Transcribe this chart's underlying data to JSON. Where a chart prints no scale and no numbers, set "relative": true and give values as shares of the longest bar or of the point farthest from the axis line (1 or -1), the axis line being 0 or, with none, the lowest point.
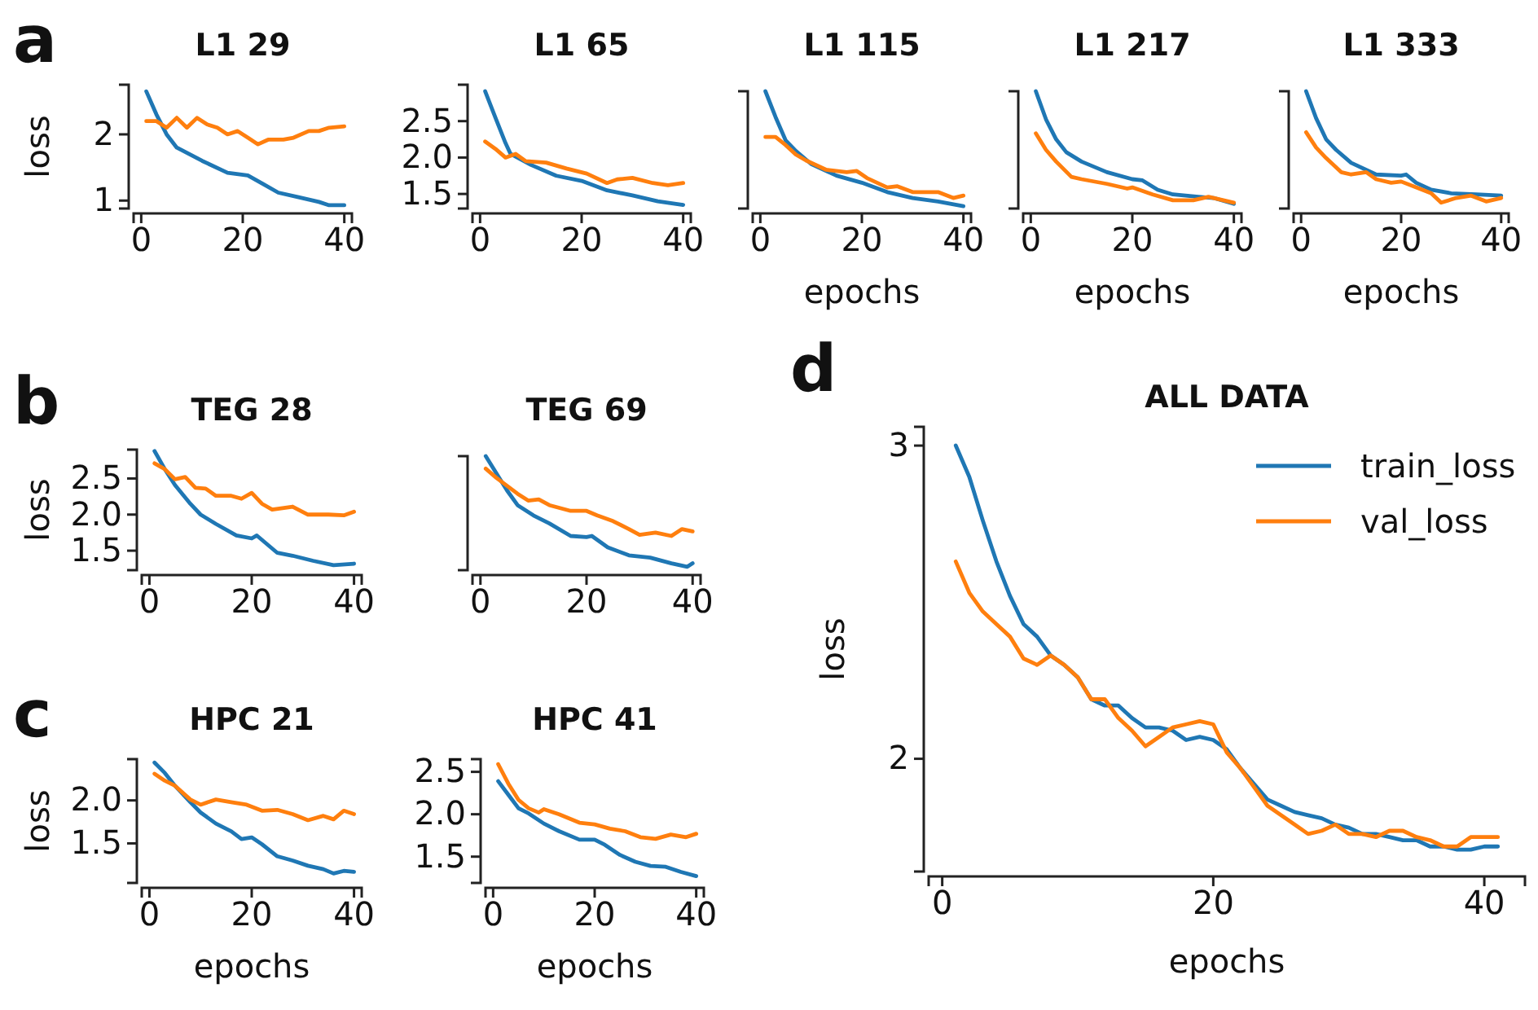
{
  "chart_data": [
    {
      "type": "line",
      "title": "L1 29",
      "ylabel": "loss",
      "annotations": [
        "a"
      ],
      "xlim": [
        -1.5,
        41.5
      ],
      "xticks": [
        0,
        20,
        40
      ],
      "ylim": [
        0.88,
        2.75
      ],
      "yticks": [
        1,
        2
      ],
      "series": [
        {
          "color": "#1f77b4",
          "x": [
            1,
            3,
            5,
            7,
            12,
            17,
            21,
            24,
            27,
            31,
            35,
            37,
            40
          ],
          "values": [
            2.65,
            2.3,
            2.0,
            1.8,
            1.6,
            1.42,
            1.38,
            1.25,
            1.12,
            1.05,
            0.98,
            0.93,
            0.93
          ]
        },
        {
          "color": "#ff7f0e",
          "x": [
            1,
            3,
            5,
            7,
            9,
            11,
            13,
            15,
            17,
            19,
            21,
            23,
            25,
            28,
            30,
            33,
            35,
            37,
            40
          ],
          "values": [
            2.2,
            2.2,
            2.1,
            2.25,
            2.1,
            2.25,
            2.15,
            2.1,
            2.0,
            2.05,
            1.95,
            1.85,
            1.92,
            1.92,
            1.95,
            2.05,
            2.05,
            2.1,
            2.12
          ]
        }
      ]
    },
    {
      "type": "line",
      "title": "L1 65",
      "xlim": [
        -1.5,
        41.5
      ],
      "xticks": [
        0,
        20,
        40
      ],
      "ylim": [
        1.3,
        3.0
      ],
      "yticks": [
        {
          "value": 1.5,
          "label": "1.5"
        },
        {
          "value": 2,
          "label": "2.0"
        },
        {
          "value": 2.5,
          "label": "2.5"
        }
      ],
      "series": [
        {
          "color": "#1f77b4",
          "x": [
            1,
            3,
            5,
            6,
            10,
            15,
            20,
            25,
            30,
            35,
            40
          ],
          "values": [
            2.91,
            2.55,
            2.2,
            2.05,
            1.9,
            1.75,
            1.68,
            1.55,
            1.48,
            1.4,
            1.35
          ]
        },
        {
          "color": "#ff7f0e",
          "x": [
            1,
            3,
            5,
            7,
            9,
            13,
            17,
            21,
            25,
            27,
            30,
            34,
            37,
            40
          ],
          "values": [
            2.22,
            2.12,
            2.0,
            2.05,
            1.95,
            1.93,
            1.85,
            1.78,
            1.65,
            1.7,
            1.72,
            1.65,
            1.62,
            1.65
          ]
        }
      ]
    },
    {
      "type": "line",
      "title": "L1 115",
      "xlabel": "epochs",
      "relative": true,
      "xlim": [
        -1.5,
        41.5
      ],
      "xticks": [
        0,
        20,
        40
      ],
      "series": [
        {
          "color": "#1f77b4",
          "x": [
            1,
            3,
            5,
            7,
            10,
            15,
            20,
            25,
            30,
            35,
            40
          ],
          "values": [
            1,
            0.78,
            0.58,
            0.49,
            0.38,
            0.28,
            0.22,
            0.14,
            0.09,
            0.06,
            0.02
          ]
        },
        {
          "color": "#ff7f0e",
          "x": [
            1,
            3,
            5,
            7,
            9,
            13,
            17,
            19,
            21,
            25,
            27,
            30,
            35,
            38,
            40
          ],
          "values": [
            0.61,
            0.61,
            0.54,
            0.46,
            0.41,
            0.33,
            0.31,
            0.32,
            0.26,
            0.18,
            0.19,
            0.14,
            0.14,
            0.09,
            0.11
          ]
        }
      ]
    },
    {
      "type": "line",
      "title": "L1 217",
      "xlabel": "epochs",
      "relative": true,
      "xlim": [
        -1.5,
        41.5
      ],
      "xticks": [
        0,
        20,
        40
      ],
      "series": [
        {
          "color": "#1f77b4",
          "x": [
            1,
            3,
            5,
            7,
            10,
            15,
            20,
            22,
            25,
            28,
            33,
            36,
            40
          ],
          "values": [
            1,
            0.76,
            0.59,
            0.48,
            0.4,
            0.31,
            0.25,
            0.24,
            0.16,
            0.12,
            0.1,
            0.09,
            0.04
          ]
        },
        {
          "color": "#ff7f0e",
          "x": [
            1,
            3,
            5,
            8,
            10,
            15,
            19,
            20,
            24,
            28,
            32,
            35,
            40
          ],
          "values": [
            0.64,
            0.5,
            0.4,
            0.27,
            0.25,
            0.21,
            0.17,
            0.18,
            0.12,
            0.07,
            0.07,
            0.1,
            0.05
          ]
        }
      ]
    },
    {
      "type": "line",
      "title": "L1 333",
      "xlabel": "epochs",
      "relative": true,
      "xlim": [
        -1.5,
        41.5
      ],
      "xticks": [
        0,
        20,
        40
      ],
      "series": [
        {
          "color": "#1f77b4",
          "x": [
            1,
            3,
            5,
            7,
            10,
            15,
            20,
            21,
            23,
            26,
            30,
            35,
            40
          ],
          "values": [
            1,
            0.77,
            0.59,
            0.5,
            0.39,
            0.29,
            0.28,
            0.29,
            0.22,
            0.16,
            0.13,
            0.12,
            0.11
          ]
        },
        {
          "color": "#ff7f0e",
          "x": [
            1,
            3,
            5,
            8,
            10,
            13,
            15,
            18,
            20,
            23,
            26,
            28,
            31,
            34,
            37,
            40
          ],
          "values": [
            0.65,
            0.52,
            0.43,
            0.31,
            0.29,
            0.31,
            0.25,
            0.22,
            0.23,
            0.18,
            0.13,
            0.05,
            0.09,
            0.11,
            0.06,
            0.09
          ]
        }
      ]
    },
    {
      "type": "line",
      "title": "TEG 28",
      "ylabel": "loss",
      "annotations": [
        "b"
      ],
      "xlim": [
        -1.5,
        41.5
      ],
      "xticks": [
        0,
        20,
        40
      ],
      "ylim": [
        1.23,
        2.9
      ],
      "yticks": [
        {
          "value": 1.5,
          "label": "1.5"
        },
        {
          "value": 2,
          "label": "2.0"
        },
        {
          "value": 2.5,
          "label": "2.5"
        }
      ],
      "series": [
        {
          "color": "#1f77b4",
          "x": [
            1,
            3,
            5,
            8,
            10,
            13,
            17,
            20,
            21,
            25,
            28,
            32,
            36,
            40
          ],
          "values": [
            2.88,
            2.63,
            2.41,
            2.15,
            2.0,
            1.87,
            1.71,
            1.67,
            1.71,
            1.47,
            1.43,
            1.36,
            1.3,
            1.32
          ]
        },
        {
          "color": "#ff7f0e",
          "x": [
            1,
            3,
            5,
            7,
            9,
            11,
            13,
            16,
            18,
            20,
            22,
            24,
            28,
            31,
            35,
            38,
            40
          ],
          "values": [
            2.71,
            2.63,
            2.49,
            2.52,
            2.37,
            2.36,
            2.26,
            2.26,
            2.22,
            2.3,
            2.15,
            2.07,
            2.11,
            2.0,
            2.0,
            1.99,
            2.04
          ]
        }
      ]
    },
    {
      "type": "line",
      "title": "TEG 69",
      "relative": true,
      "xlim": [
        -1.5,
        41.5
      ],
      "xticks": [
        0,
        20,
        40
      ],
      "series": [
        {
          "color": "#1f77b4",
          "x": [
            1,
            3,
            5,
            7,
            10,
            13,
            17,
            20,
            21,
            24,
            28,
            32,
            36,
            39,
            40
          ],
          "values": [
            1,
            0.85,
            0.7,
            0.57,
            0.48,
            0.41,
            0.3,
            0.29,
            0.3,
            0.2,
            0.13,
            0.11,
            0.06,
            0.03,
            0.06
          ]
        },
        {
          "color": "#ff7f0e",
          "x": [
            1,
            3,
            5,
            7,
            9,
            11,
            13,
            17,
            20,
            22,
            25,
            28,
            30,
            33,
            36,
            38,
            40
          ],
          "values": [
            0.89,
            0.81,
            0.74,
            0.67,
            0.61,
            0.62,
            0.57,
            0.52,
            0.52,
            0.48,
            0.43,
            0.36,
            0.31,
            0.33,
            0.3,
            0.36,
            0.34
          ]
        }
      ]
    },
    {
      "type": "line",
      "title": "HPC 21",
      "xlabel": "epochs",
      "ylabel": "loss",
      "annotations": [
        "c"
      ],
      "xlim": [
        -1.5,
        41.5
      ],
      "xticks": [
        0,
        20,
        40
      ],
      "ylim": [
        1.04,
        2.48
      ],
      "yticks": [
        {
          "value": 1.5,
          "label": "1.5"
        },
        {
          "value": 2,
          "label": "2.0"
        }
      ],
      "series": [
        {
          "color": "#1f77b4",
          "x": [
            1,
            3,
            5,
            8,
            10,
            13,
            16,
            18,
            20,
            22,
            25,
            28,
            31,
            34,
            36,
            38,
            40
          ],
          "values": [
            2.44,
            2.32,
            2.17,
            1.98,
            1.86,
            1.73,
            1.64,
            1.55,
            1.57,
            1.49,
            1.35,
            1.3,
            1.24,
            1.2,
            1.15,
            1.18,
            1.17
          ]
        },
        {
          "color": "#ff7f0e",
          "x": [
            1,
            3,
            5,
            8,
            10,
            13,
            16,
            19,
            22,
            25,
            28,
            31,
            34,
            36,
            38,
            40
          ],
          "values": [
            2.31,
            2.23,
            2.17,
            2.01,
            1.95,
            2.01,
            1.98,
            1.95,
            1.88,
            1.89,
            1.84,
            1.77,
            1.82,
            1.78,
            1.88,
            1.84
          ]
        }
      ]
    },
    {
      "type": "line",
      "title": "HPC 41",
      "xlabel": "epochs",
      "xlim": [
        -1.5,
        41.5
      ],
      "xticks": [
        0,
        20,
        40
      ],
      "ylim": [
        1.19,
        2.65
      ],
      "yticks": [
        {
          "value": 1.5,
          "label": "1.5"
        },
        {
          "value": 2,
          "label": "2.0"
        },
        {
          "value": 2.5,
          "label": "2.5"
        }
      ],
      "series": [
        {
          "color": "#1f77b4",
          "x": [
            1,
            3,
            5,
            7,
            10,
            13,
            17,
            20,
            22,
            25,
            28,
            31,
            34,
            37,
            40
          ],
          "values": [
            2.39,
            2.23,
            2.07,
            2.01,
            1.89,
            1.8,
            1.7,
            1.7,
            1.64,
            1.52,
            1.44,
            1.39,
            1.38,
            1.32,
            1.27
          ]
        },
        {
          "color": "#ff7f0e",
          "x": [
            1,
            3,
            5,
            7,
            9,
            10,
            13,
            17,
            20,
            23,
            26,
            29,
            32,
            35,
            38,
            40
          ],
          "values": [
            2.59,
            2.36,
            2.17,
            2.07,
            2.02,
            2.06,
            2.0,
            1.9,
            1.88,
            1.83,
            1.8,
            1.73,
            1.71,
            1.76,
            1.73,
            1.77
          ]
        }
      ]
    },
    {
      "type": "line",
      "title": "ALL DATA",
      "xlabel": "epochs",
      "ylabel": "loss",
      "annotations": [
        "d"
      ],
      "legend": "top right",
      "xlim": [
        -1,
        43
      ],
      "xticks": [
        0,
        20,
        40
      ],
      "ylim": [
        1.64,
        3.06
      ],
      "yticks": [
        2,
        3
      ],
      "x": [
        1,
        2,
        3,
        4,
        5,
        6,
        7,
        8,
        9,
        10,
        11,
        12,
        13,
        14,
        15,
        16,
        17,
        18,
        19,
        20,
        21,
        22,
        23,
        24,
        25,
        26,
        27,
        28,
        29,
        30,
        31,
        32,
        33,
        34,
        35,
        36,
        37,
        38,
        39,
        40,
        41
      ],
      "series": [
        {
          "name": "train_loss",
          "color": "#1f77b4",
          "values": [
            3.0,
            2.9,
            2.76,
            2.63,
            2.52,
            2.43,
            2.39,
            2.33,
            2.3,
            2.26,
            2.19,
            2.17,
            2.17,
            2.13,
            2.1,
            2.1,
            2.09,
            2.06,
            2.07,
            2.06,
            2.03,
            1.97,
            1.92,
            1.87,
            1.85,
            1.83,
            1.82,
            1.81,
            1.79,
            1.78,
            1.76,
            1.76,
            1.75,
            1.74,
            1.74,
            1.72,
            1.72,
            1.71,
            1.71,
            1.72,
            1.72
          ]
        },
        {
          "name": "val_loss",
          "color": "#ff7f0e",
          "values": [
            2.63,
            2.53,
            2.47,
            2.43,
            2.39,
            2.32,
            2.3,
            2.33,
            2.3,
            2.26,
            2.19,
            2.19,
            2.13,
            2.09,
            2.04,
            2.07,
            2.1,
            2.11,
            2.12,
            2.11,
            2.02,
            1.97,
            1.91,
            1.85,
            1.82,
            1.79,
            1.76,
            1.77,
            1.79,
            1.76,
            1.76,
            1.75,
            1.77,
            1.77,
            1.75,
            1.74,
            1.72,
            1.72,
            1.75,
            1.75,
            1.75
          ]
        }
      ]
    }
  ]
}
